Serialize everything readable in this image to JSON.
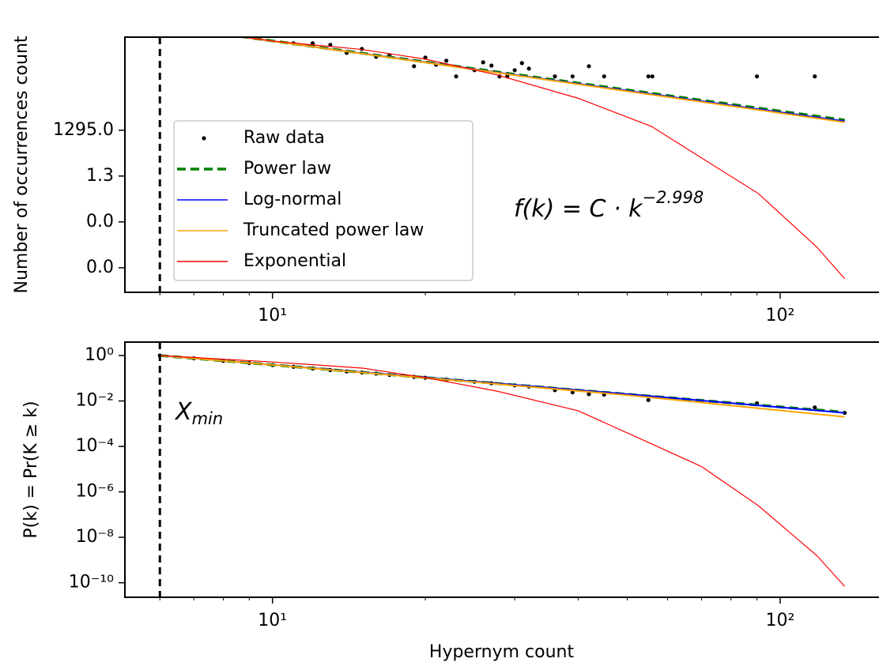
{
  "chart_data": [
    {
      "type": "line",
      "ylabel": "Number of occurrences count",
      "xlog": true,
      "ylog": true,
      "grid": false,
      "xlim": [
        5.12,
        156
      ],
      "xticks": [
        {
          "value": 10,
          "label": "10¹"
        },
        {
          "value": 100,
          "label": "10²"
        }
      ],
      "xminorticks": [
        6,
        7,
        8,
        9,
        20,
        30,
        40,
        50,
        60,
        70,
        80,
        90
      ],
      "ylim": [
        3.2e-08,
        1600000000.0
      ],
      "yticks": [
        {
          "value": 1295,
          "label": "1295.0"
        },
        {
          "value": 1.3,
          "label": "1.3"
        },
        {
          "value": 0.0013,
          "label": "0.0"
        },
        {
          "value": 1.3e-06,
          "label": "0.0"
        }
      ],
      "xmin": 6,
      "legend": "lower left",
      "annotation": {
        "text": "f(k) = C · k",
        "superscript": "−2.998"
      },
      "series": [
        {
          "name": "Raw data",
          "color": "#000000",
          "marker": "dot",
          "x": [
            11,
            12,
            13,
            14,
            15,
            16,
            17,
            19,
            20,
            21,
            22,
            23,
            25,
            26,
            27,
            28,
            29,
            30,
            31,
            32,
            36,
            39,
            42,
            45,
            55,
            56,
            90,
            117
          ],
          "values": [
            630000000.0,
            630000000.0,
            500000000.0,
            150000000.0,
            270000000.0,
            83000000.0,
            105000000.0,
            20000000.0,
            74000000.0,
            25000000.0,
            46000000.0,
            4300000.0,
            11000000.0,
            36000000.0,
            22000000.0,
            4300000.0,
            4300000.0,
            11000000.0,
            32000000.0,
            14000000.0,
            4300000.0,
            4300000.0,
            20000000.0,
            4300000.0,
            4300000.0,
            4300000.0,
            4300000.0,
            4300000.0
          ]
        },
        {
          "name": "Power law",
          "color": "#008000",
          "linestyle": "dashed",
          "x": [
            6,
            10,
            20,
            50,
            134
          ],
          "values": [
            9500000000.0,
            910000000.0,
            38000000.0,
            560000.0,
            6000.0
          ]
        },
        {
          "name": "Log-normal",
          "color": "#0000ff",
          "linestyle": "solid",
          "x": [
            6,
            10,
            20,
            50,
            134
          ],
          "values": [
            9300000000.0,
            890000000.0,
            36000000.0,
            500000.0,
            5000.0
          ]
        },
        {
          "name": "Truncated power law",
          "color": "#ffa500",
          "linestyle": "solid",
          "x": [
            6,
            10,
            20,
            50,
            134
          ],
          "values": [
            9400000000.0,
            880000000.0,
            35000000.0,
            460000.0,
            4300.0
          ]
        },
        {
          "name": "Exponential",
          "color": "#ff0000",
          "linestyle": "solid",
          "x": [
            6,
            8.8,
            10,
            15,
            20,
            27.7,
            40,
            55.8,
            70,
            90.5,
            118,
            134
          ],
          "values": [
            6300000000.0,
            1600000000.0,
            890000000.0,
            250000000.0,
            58000000.0,
            5400000.0,
            160000.0,
            2300.0,
            20,
            0.095,
            3e-05,
            2.5e-07
          ]
        }
      ]
    },
    {
      "type": "line",
      "ylabel": "P(k) = Pr(K ≥ k)",
      "xlabel": "Hypernym count",
      "xlog": true,
      "ylog": true,
      "grid": false,
      "xlim": [
        5.12,
        156
      ],
      "xticks": [
        {
          "value": 10,
          "label": "10¹"
        },
        {
          "value": 100,
          "label": "10²"
        }
      ],
      "xminorticks": [
        6,
        7,
        8,
        9,
        20,
        30,
        40,
        50,
        60,
        70,
        80,
        90
      ],
      "ylim": [
        2.3e-11,
        3.9
      ],
      "yticks": [
        {
          "value": 1,
          "label": "10⁰"
        },
        {
          "value": 0.01,
          "label": "10⁻²"
        },
        {
          "value": 0.0001,
          "label": "10⁻⁴"
        },
        {
          "value": 1e-06,
          "label": "10⁻⁶"
        },
        {
          "value": 1e-08,
          "label": "10⁻⁸"
        },
        {
          "value": 1e-10,
          "label": "10⁻¹⁰"
        }
      ],
      "xmin": 6,
      "xmin_label": {
        "text": "X",
        "subscript": "min"
      },
      "series": [
        {
          "color": "#000000",
          "marker": "dot",
          "x": [
            6,
            7,
            8,
            9,
            10,
            11,
            12,
            13,
            14,
            15,
            16,
            17,
            19,
            20,
            22,
            25,
            27,
            30,
            32,
            36,
            39,
            42,
            45,
            55,
            90,
            117,
            134
          ],
          "values": [
            1,
            0.75,
            0.58,
            0.47,
            0.38,
            0.32,
            0.27,
            0.23,
            0.2,
            0.18,
            0.16,
            0.14,
            0.115,
            0.105,
            0.088,
            0.07,
            0.06,
            0.049,
            0.043,
            0.03,
            0.024,
            0.02,
            0.019,
            0.011,
            0.0078,
            0.0052,
            0.003
          ]
        },
        {
          "color": "#008000",
          "linestyle": "dashed",
          "x": [
            6,
            10,
            20,
            50,
            134
          ],
          "values": [
            1,
            0.388,
            0.107,
            0.0197,
            0.0032
          ]
        },
        {
          "color": "#0000ff",
          "linestyle": "solid",
          "x": [
            6,
            10,
            20,
            50,
            134
          ],
          "values": [
            1,
            0.39,
            0.108,
            0.02,
            0.003
          ]
        },
        {
          "color": "#ffa500",
          "linestyle": "solid",
          "x": [
            6,
            10,
            20,
            50,
            134
          ],
          "values": [
            1,
            0.385,
            0.104,
            0.018,
            0.002
          ]
        },
        {
          "color": "#ff0000",
          "linestyle": "solid",
          "x": [
            6,
            10,
            15,
            20,
            27.7,
            40,
            55.8,
            70,
            90.5,
            118,
            134
          ],
          "values": [
            1,
            0.52,
            0.28,
            0.107,
            0.027,
            0.0037,
            0.00013,
            1.3e-05,
            2.5e-07,
            1.6e-09,
            6.9e-11
          ]
        }
      ]
    }
  ]
}
